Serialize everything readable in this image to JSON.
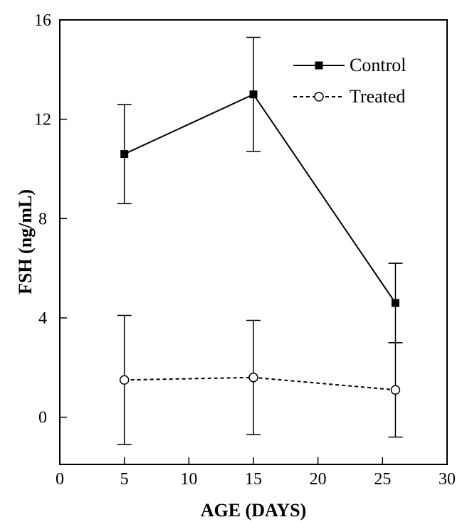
{
  "chart_data": {
    "type": "line",
    "xlabel": "AGE (DAYS)",
    "ylabel": "FSH (ng/mL)",
    "xlim": [
      0,
      30
    ],
    "ylim": [
      -1.9,
      16
    ],
    "xticks": [
      0,
      5,
      10,
      15,
      20,
      25,
      30
    ],
    "yticks": [
      0,
      4,
      8,
      12,
      16
    ],
    "grid": false,
    "legend": "top-right",
    "series": [
      {
        "name": "Control",
        "marker": "filled-square",
        "line": "solid",
        "x": [
          5,
          15,
          26
        ],
        "y": [
          10.6,
          13.0,
          4.6
        ],
        "err_low": [
          8.6,
          10.7,
          3.0
        ],
        "err_high": [
          12.6,
          15.3,
          6.2
        ]
      },
      {
        "name": "Treated",
        "marker": "open-circle",
        "line": "dashed",
        "x": [
          5,
          15,
          26
        ],
        "y": [
          1.5,
          1.6,
          1.1
        ],
        "err_low": [
          -1.1,
          -0.7,
          -0.8
        ],
        "err_high": [
          4.1,
          3.9,
          3.0
        ]
      }
    ]
  }
}
